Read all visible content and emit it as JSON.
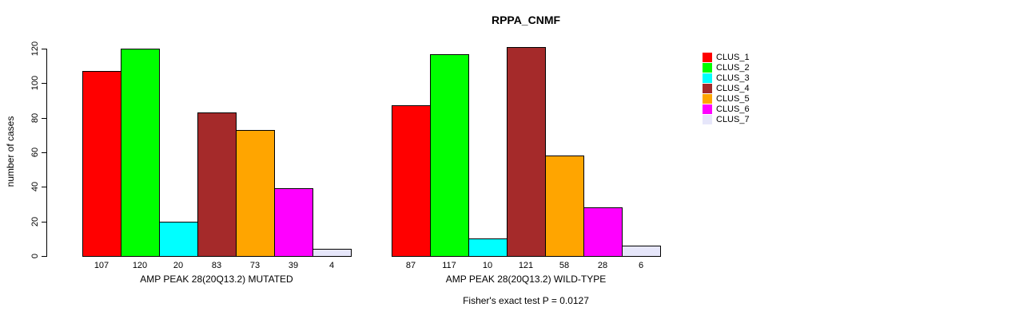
{
  "chart_data": {
    "type": "bar",
    "title": "RPPA_CNMF",
    "ylabel": "number of cases",
    "xlabel": "",
    "ylim": [
      0,
      120
    ],
    "yticks": [
      0,
      20,
      40,
      60,
      80,
      100,
      120
    ],
    "grid": false,
    "legend_position": "right",
    "series": [
      {
        "name": "CLUS_1",
        "color": "#ff0000"
      },
      {
        "name": "CLUS_2",
        "color": "#00ff00"
      },
      {
        "name": "CLUS_3",
        "color": "#00ffff"
      },
      {
        "name": "CLUS_4",
        "color": "#a52a2a"
      },
      {
        "name": "CLUS_5",
        "color": "#ffa500"
      },
      {
        "name": "CLUS_6",
        "color": "#ff00ff"
      },
      {
        "name": "CLUS_7",
        "color": "#e6e6fa"
      }
    ],
    "groups": [
      {
        "label": "AMP PEAK 28(20Q13.2) MUTATED",
        "values": [
          107,
          120,
          20,
          83,
          73,
          39,
          4
        ]
      },
      {
        "label": "AMP PEAK 28(20Q13.2) WILD-TYPE",
        "values": [
          87,
          117,
          10,
          121,
          58,
          28,
          6
        ]
      }
    ],
    "footnote": "Fisher's exact test P = 0.0127"
  }
}
